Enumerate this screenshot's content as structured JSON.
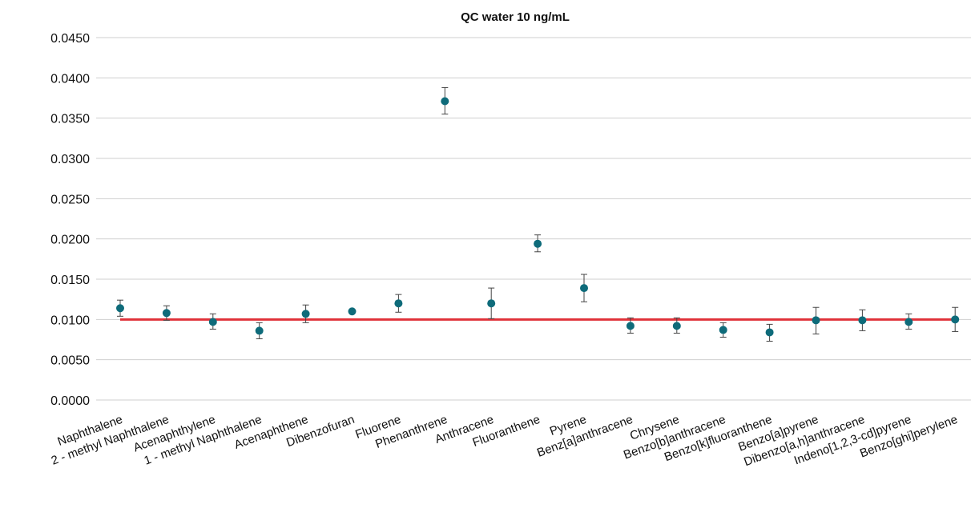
{
  "chart_data": {
    "type": "scatter",
    "title": "QC water 10 ng/mL",
    "xlabel": "",
    "ylabel": "",
    "ylim": [
      0,
      0.045
    ],
    "yticks": [
      {
        "value": 0,
        "label": "0.0000"
      },
      {
        "value": 0.005,
        "label": "0.0050"
      },
      {
        "value": 0.01,
        "label": "0.0100"
      },
      {
        "value": 0.015,
        "label": "0.0150"
      },
      {
        "value": 0.02,
        "label": "0.0200"
      },
      {
        "value": 0.025,
        "label": "0.0250"
      },
      {
        "value": 0.03,
        "label": "0.0300"
      },
      {
        "value": 0.035,
        "label": "0.0350"
      },
      {
        "value": 0.04,
        "label": "0.0400"
      },
      {
        "value": 0.045,
        "label": "0.0450"
      }
    ],
    "grid": true,
    "legend": "none",
    "categories": [
      "Naphthalene",
      "2 - methyl Naphthalene",
      "Acenaphthylene",
      "1 - methyl Naphthalene",
      "Acenaphthene",
      "Dibenzofuran",
      "Fluorene",
      "Phenanthrene",
      "Anthracene",
      "Fluoranthene",
      "Pyrene",
      "Benz[a]anthracene",
      "Chrysene",
      "Benzo[b]anthracene",
      "Benzo[k]fluoranthene",
      "Benzo[a]pyrene",
      "Dibenzo[a,h]anthracene",
      "Indeno[1,2,3-cd]pyrene",
      "Benzo[ghi]perylene"
    ],
    "series": [
      {
        "values": [
          0.0114,
          0.0108,
          0.0097,
          0.0086,
          0.0107,
          0.011,
          0.012,
          0.0371,
          0.012,
          0.0194,
          0.0139,
          0.0092,
          0.0092,
          0.0087,
          0.0084,
          0.0099,
          0.0099,
          0.0097,
          0.01
        ],
        "error_low": [
          0.0104,
          0.0099,
          0.0088,
          0.0076,
          0.0096,
          0.011,
          0.0109,
          0.0355,
          0.0101,
          0.0184,
          0.0122,
          0.0083,
          0.0083,
          0.0078,
          0.0073,
          0.0082,
          0.0086,
          0.0088,
          0.0085
        ],
        "error_high": [
          0.0124,
          0.0117,
          0.0107,
          0.0096,
          0.0118,
          0.011,
          0.0131,
          0.0388,
          0.0139,
          0.0205,
          0.0156,
          0.0102,
          0.0102,
          0.0096,
          0.0094,
          0.0115,
          0.0112,
          0.0107,
          0.0115
        ],
        "color": "#0e6b7a"
      }
    ],
    "reference_line": {
      "value": 0.01,
      "color": "#e0323a"
    }
  }
}
